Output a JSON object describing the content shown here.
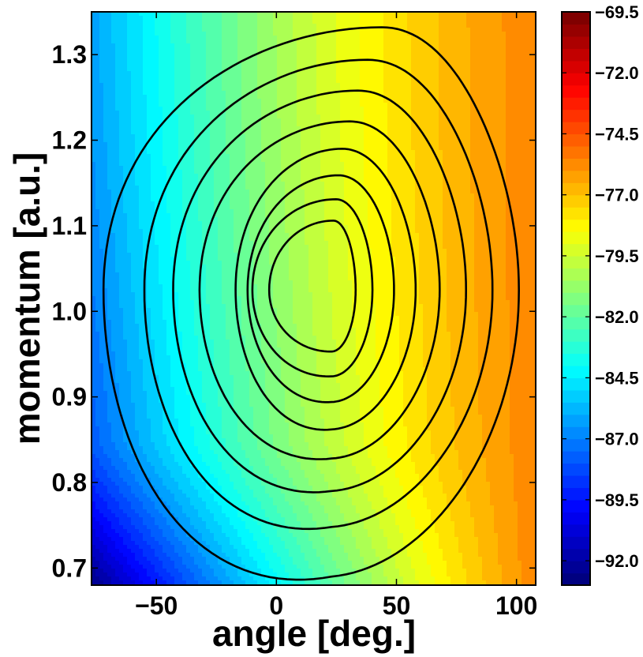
{
  "chart_data": {
    "type": "filled-contour",
    "title": "",
    "xlabel": "angle [deg.]",
    "ylabel": "momentum [a.u.]",
    "xlim": [
      -77,
      108
    ],
    "ylim": [
      0.68,
      1.35
    ],
    "x_ticks": [
      "-50",
      "0",
      "50",
      "100"
    ],
    "x_tick_values": [
      -50,
      0,
      50,
      100
    ],
    "y_ticks": [
      "0.7",
      "0.8",
      "0.9",
      "1.0",
      "1.1",
      "1.2",
      "1.3"
    ],
    "y_tick_values": [
      0.7,
      0.8,
      0.9,
      1.0,
      1.1,
      1.2,
      1.3
    ],
    "colorbar": {
      "range": [
        -93,
        -69.5
      ],
      "colormap": "jet",
      "tick_labels": [
        "-69.5",
        "-72.0",
        "-74.5",
        "-77.0",
        "-79.5",
        "-82.0",
        "-84.5",
        "-87.0",
        "-89.5",
        "-92.0"
      ],
      "tick_values": [
        -69.5,
        -72.0,
        -74.5,
        -77.0,
        -79.5,
        -82.0,
        -84.5,
        -87.0,
        -89.5,
        -92.0
      ]
    },
    "contour_lines": {
      "color": "#000000",
      "count": 8,
      "center": [
        23,
        1.025
      ],
      "loops": [
        {
          "x_range": [
            -72,
            101
          ],
          "y_range": [
            0.69,
            1.332
          ]
        },
        {
          "x_range": [
            -55,
            90
          ],
          "y_range": [
            0.748,
            1.294
          ]
        },
        {
          "x_range": [
            -43,
            79
          ],
          "y_range": [
            0.79,
            1.258
          ]
        },
        {
          "x_range": [
            -32,
            68
          ],
          "y_range": [
            0.828,
            1.222
          ]
        },
        {
          "x_range": [
            -17,
            58
          ],
          "y_range": [
            0.862,
            1.19
          ]
        },
        {
          "x_range": [
            -12,
            49
          ],
          "y_range": [
            0.894,
            1.159
          ]
        },
        {
          "x_range": [
            -10,
            40
          ],
          "y_range": [
            0.924,
            1.131
          ]
        },
        {
          "x_range": [
            -3,
            33
          ],
          "y_range": [
            0.953,
            1.106
          ]
        }
      ]
    }
  }
}
